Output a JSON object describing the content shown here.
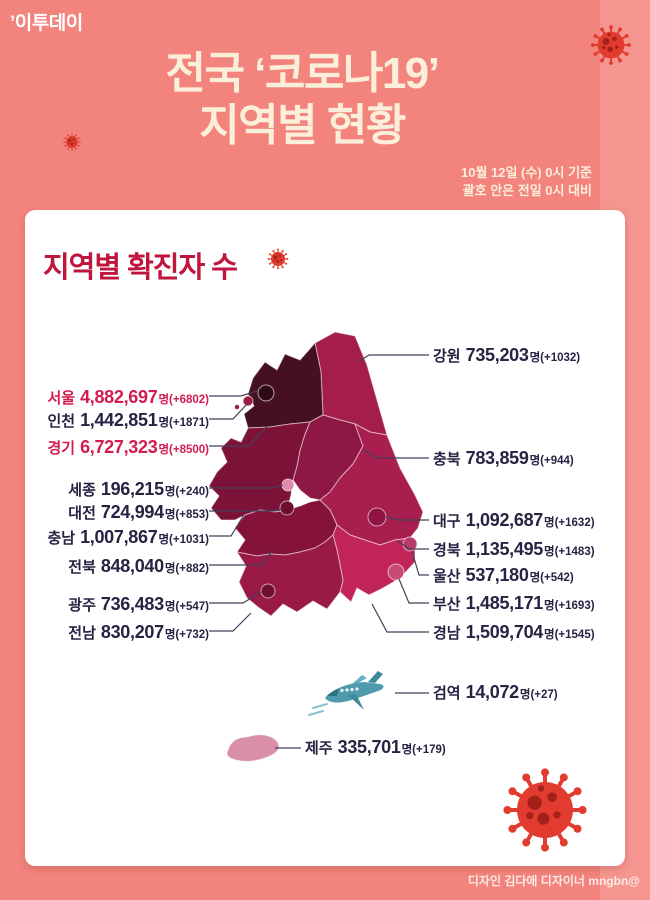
{
  "header": {
    "logo": "’이투데이",
    "title_line1": "전국 ‘코로나19’",
    "title_line2": "지역별 현황",
    "date_line1": "10월 12일 (수) 0시 기준",
    "date_line2": "괄호 안은 전일 0시 대비"
  },
  "card": {
    "heading": "지역별 확진자 수"
  },
  "footer": {
    "credit": "디자인 김다애 디자이너  mngbn@"
  },
  "colors": {
    "background": "#F2837D",
    "background_band": "#F5958F",
    "card": "#FFFFFF",
    "title_text": "#FBEFD9",
    "heading_text": "#C0153C",
    "label_text": "#262343",
    "label_highlight": "#D21C4F",
    "connector": "#44405A",
    "virus_red": "#E23C30",
    "virus_spot": "#A6201A",
    "plane_teal": "#4E9BAB",
    "map": {
      "gyeonggi": "#45101F",
      "seoul": "#2E0A15",
      "incheon": "#9C1C44",
      "gangwon": "#A51D4B",
      "chungbuk": "#8E1743",
      "chungnam": "#7D1238",
      "sejong": "#E389A9",
      "daejeon": "#6E0D2C",
      "jeonbuk": "#85123B",
      "gwangju": "#70102E",
      "jeonnam": "#991947",
      "gyeongbuk": "#A81E4E",
      "daegu": "#8E1340",
      "ulsan": "#B93A6B",
      "busan": "#C94A78",
      "gyeongnam": "#C12456",
      "jeju": "#D98FA9"
    }
  },
  "labels": {
    "left": [
      {
        "name": "서울",
        "value": "4,882,697",
        "suffix": "명(+6802)",
        "highlight": true
      },
      {
        "name": "인천",
        "value": "1,442,851",
        "suffix": "명(+1871)",
        "highlight": false
      },
      {
        "name": "경기",
        "value": "6,727,323",
        "suffix": "명(+8500)",
        "highlight": true
      },
      {
        "name": "세종",
        "value": "196,215",
        "suffix": "명(+240)",
        "highlight": false
      },
      {
        "name": "대전",
        "value": "724,994",
        "suffix": "명(+853)",
        "highlight": false
      },
      {
        "name": "충남",
        "value": "1,007,867",
        "suffix": "명(+1031)",
        "highlight": false
      },
      {
        "name": "전북",
        "value": "848,040",
        "suffix": "명(+882)",
        "highlight": false
      },
      {
        "name": "광주",
        "value": "736,483",
        "suffix": "명(+547)",
        "highlight": false
      },
      {
        "name": "전남",
        "value": "830,207",
        "suffix": "명(+732)",
        "highlight": false
      }
    ],
    "right": [
      {
        "name": "강원",
        "value": "735,203",
        "suffix": "명(+1032)",
        "highlight": false
      },
      {
        "name": "충북",
        "value": "783,859",
        "suffix": "명(+944)",
        "highlight": false
      },
      {
        "name": "대구",
        "value": "1,092,687",
        "suffix": "명(+1632)",
        "highlight": false
      },
      {
        "name": "경북",
        "value": "1,135,495",
        "suffix": "명(+1483)",
        "highlight": false
      },
      {
        "name": "울산",
        "value": "537,180",
        "suffix": "명(+542)",
        "highlight": false
      },
      {
        "name": "부산",
        "value": "1,485,171",
        "suffix": "명(+1693)",
        "highlight": false
      },
      {
        "name": "경남",
        "value": "1,509,704",
        "suffix": "명(+1545)",
        "highlight": false
      },
      {
        "name": "검역",
        "value": "14,072",
        "suffix": "명(+27)",
        "highlight": false
      },
      {
        "name": "제주",
        "value": "335,701",
        "suffix": "명(+179)",
        "highlight": false
      }
    ]
  },
  "chart_data": {
    "type": "heatmap",
    "subtype": "choropleth-map",
    "title": "전국 ‘코로나19’ 지역별 현황",
    "subtitle": "지역별 확진자 수",
    "as_of": "10월 12일 (수) 0시 기준",
    "note": "괄호 안은 전일 0시 대비",
    "unit": "명",
    "legend_position": "none",
    "regions": [
      {
        "region": "서울",
        "confirmed": 4882697,
        "daily_change": 6802
      },
      {
        "region": "인천",
        "confirmed": 1442851,
        "daily_change": 1871
      },
      {
        "region": "경기",
        "confirmed": 6727323,
        "daily_change": 8500
      },
      {
        "region": "세종",
        "confirmed": 196215,
        "daily_change": 240
      },
      {
        "region": "대전",
        "confirmed": 724994,
        "daily_change": 853
      },
      {
        "region": "충남",
        "confirmed": 1007867,
        "daily_change": 1031
      },
      {
        "region": "전북",
        "confirmed": 848040,
        "daily_change": 882
      },
      {
        "region": "광주",
        "confirmed": 736483,
        "daily_change": 547
      },
      {
        "region": "전남",
        "confirmed": 830207,
        "daily_change": 732
      },
      {
        "region": "강원",
        "confirmed": 735203,
        "daily_change": 1032
      },
      {
        "region": "충북",
        "confirmed": 783859,
        "daily_change": 944
      },
      {
        "region": "대구",
        "confirmed": 1092687,
        "daily_change": 1632
      },
      {
        "region": "경북",
        "confirmed": 1135495,
        "daily_change": 1483
      },
      {
        "region": "울산",
        "confirmed": 537180,
        "daily_change": 542
      },
      {
        "region": "부산",
        "confirmed": 1485171,
        "daily_change": 1693
      },
      {
        "region": "경남",
        "confirmed": 1509704,
        "daily_change": 1545
      },
      {
        "region": "검역",
        "confirmed": 14072,
        "daily_change": 27
      },
      {
        "region": "제주",
        "confirmed": 335701,
        "daily_change": 179
      }
    ]
  }
}
